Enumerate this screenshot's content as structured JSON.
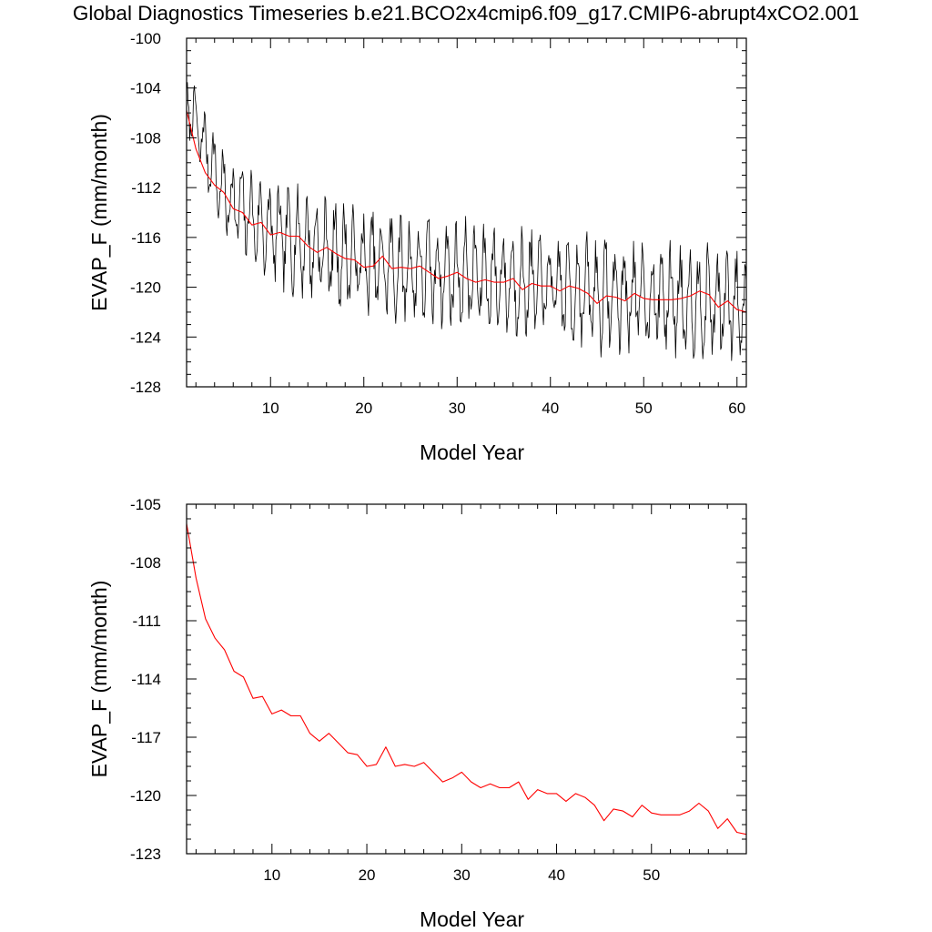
{
  "title": "Global Diagnostics Timeseries b.e21.BCO2x4cmip6.f09_g17.CMIP6-abrupt4xCO2.001",
  "chart_data": [
    {
      "type": "line",
      "title": "",
      "xlabel": "Model Year",
      "ylabel": "EVAP_F (mm/month)",
      "xlim": [
        1,
        61
      ],
      "ylim": [
        -128,
        -100
      ],
      "xticks": [
        10,
        20,
        30,
        40,
        50,
        60
      ],
      "yticks": [
        -128,
        -124,
        -120,
        -116,
        -112,
        -108,
        -104,
        -100
      ],
      "grid": false,
      "legend": "none",
      "series": [
        {
          "color": "#000000",
          "monthly_anchors": {
            "x": [
              1,
              5,
              10,
              15,
              20,
              25,
              30,
              35,
              40,
              45,
              50,
              55,
              60
            ],
            "mean": [
              -105.0,
              -112.6,
              -115.6,
              -116.8,
              -118.0,
              -118.6,
              -119.0,
              -119.4,
              -120.0,
              -120.6,
              -120.8,
              -121.0,
              -121.6
            ],
            "amplitude": [
              2.2,
              3.2,
              3.6,
              3.8,
              3.8,
              3.9,
              3.9,
              3.9,
              4.0,
              4.0,
              4.1,
              4.1,
              4.1
            ]
          }
        },
        {
          "color": "#ff0000",
          "x": [
            1,
            2,
            3,
            4,
            5,
            6,
            7,
            8,
            9,
            10,
            11,
            12,
            13,
            14,
            15,
            16,
            17,
            18,
            19,
            20,
            21,
            22,
            23,
            24,
            25,
            26,
            27,
            28,
            29,
            30,
            31,
            32,
            33,
            34,
            35,
            36,
            37,
            38,
            39,
            40,
            41,
            42,
            43,
            44,
            45,
            46,
            47,
            48,
            49,
            50,
            51,
            52,
            53,
            54,
            55,
            56,
            57,
            58,
            59,
            60,
            61
          ],
          "values": [
            -105.8,
            -108.9,
            -110.8,
            -111.8,
            -112.4,
            -113.7,
            -114.0,
            -115.0,
            -114.8,
            -115.8,
            -115.6,
            -115.9,
            -115.9,
            -116.7,
            -117.2,
            -116.8,
            -117.3,
            -117.7,
            -117.8,
            -118.4,
            -118.3,
            -117.5,
            -118.5,
            -118.4,
            -118.5,
            -118.3,
            -118.8,
            -119.3,
            -119.1,
            -118.8,
            -119.3,
            -119.6,
            -119.4,
            -119.6,
            -119.6,
            -119.3,
            -120.2,
            -119.7,
            -119.9,
            -119.9,
            -120.3,
            -119.9,
            -120.1,
            -120.5,
            -121.3,
            -120.7,
            -120.8,
            -121.1,
            -120.5,
            -120.9,
            -121.0,
            -121.0,
            -121.0,
            -120.9,
            -120.7,
            -120.3,
            -120.6,
            -121.6,
            -121.1,
            -121.8,
            -122.0
          ]
        }
      ]
    },
    {
      "type": "line",
      "title": "",
      "xlabel": "Model Year",
      "ylabel": "EVAP_F (mm/month)",
      "xlim": [
        1,
        60
      ],
      "ylim": [
        -123,
        -105
      ],
      "xticks": [
        10,
        20,
        30,
        40,
        50
      ],
      "yticks": [
        -123,
        -120,
        -117,
        -114,
        -111,
        -108,
        -105
      ],
      "grid": false,
      "legend": "none",
      "series": [
        {
          "color": "#ff0000",
          "x": [
            1,
            2,
            3,
            4,
            5,
            6,
            7,
            8,
            9,
            10,
            11,
            12,
            13,
            14,
            15,
            16,
            17,
            18,
            19,
            20,
            21,
            22,
            23,
            24,
            25,
            26,
            27,
            28,
            29,
            30,
            31,
            32,
            33,
            34,
            35,
            36,
            37,
            38,
            39,
            40,
            41,
            42,
            43,
            44,
            45,
            46,
            47,
            48,
            49,
            50,
            51,
            52,
            53,
            54,
            55,
            56,
            57,
            58,
            59,
            60
          ],
          "values": [
            -106.0,
            -108.8,
            -110.9,
            -111.9,
            -112.5,
            -113.6,
            -113.9,
            -115.0,
            -114.9,
            -115.8,
            -115.6,
            -115.9,
            -115.9,
            -116.8,
            -117.2,
            -116.8,
            -117.3,
            -117.8,
            -117.9,
            -118.5,
            -118.4,
            -117.5,
            -118.5,
            -118.4,
            -118.5,
            -118.3,
            -118.8,
            -119.3,
            -119.1,
            -118.8,
            -119.3,
            -119.6,
            -119.4,
            -119.6,
            -119.6,
            -119.3,
            -120.2,
            -119.7,
            -119.9,
            -119.9,
            -120.3,
            -119.9,
            -120.1,
            -120.5,
            -121.3,
            -120.7,
            -120.8,
            -121.1,
            -120.5,
            -120.9,
            -121.0,
            -121.0,
            -121.0,
            -120.8,
            -120.4,
            -120.8,
            -121.7,
            -121.2,
            -121.9,
            -122.0
          ]
        }
      ]
    }
  ]
}
